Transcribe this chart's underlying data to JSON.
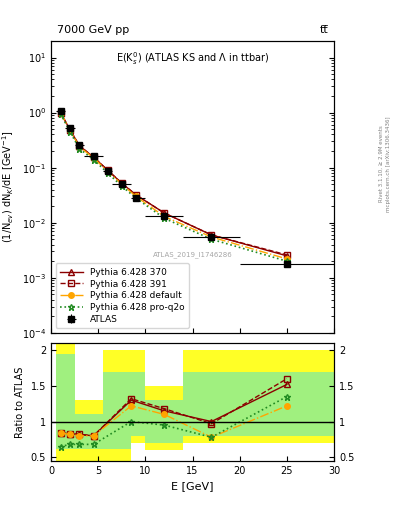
{
  "title_top": "7000 GeV pp",
  "title_right": "tt̅",
  "plot_title": "E(K$^0_s$) (ATLAS KS and Λ in ttbar)",
  "ylabel_main": "(1/N$_{ev}$) dN$_K$/dE [GeV$^{-1}$]",
  "ylabel_ratio": "Ratio to ATLAS",
  "xlabel": "E [GeV]",
  "atlas_id": "ATLAS_2019_I1746286",
  "rivet_label": "Rivet 3.1.10, ≥ 2.9M events",
  "mcplots_label": "mcplots.cern.ch [arXiv:1306.3436]",
  "x_centers": [
    1.0,
    2.0,
    3.0,
    4.5,
    6.0,
    7.5,
    9.0,
    12.0,
    17.0,
    25.0
  ],
  "x_edges": [
    0.5,
    1.5,
    2.5,
    3.5,
    5.5,
    6.5,
    8.5,
    10.0,
    14.0,
    20.0,
    30.0
  ],
  "atlas_y": [
    1.05,
    0.52,
    0.26,
    0.16,
    0.088,
    0.05,
    0.028,
    0.013,
    0.0055,
    0.0018
  ],
  "atlas_yerr": [
    0.05,
    0.03,
    0.015,
    0.01,
    0.006,
    0.004,
    0.003,
    0.001,
    0.0005,
    0.0002
  ],
  "py370_y": [
    1.0,
    0.49,
    0.25,
    0.155,
    0.09,
    0.052,
    0.032,
    0.015,
    0.006,
    0.0025
  ],
  "py391_y": [
    1.0,
    0.49,
    0.25,
    0.155,
    0.09,
    0.052,
    0.032,
    0.015,
    0.006,
    0.0026
  ],
  "pydef_y": [
    1.0,
    0.48,
    0.24,
    0.15,
    0.086,
    0.05,
    0.03,
    0.013,
    0.0055,
    0.0022
  ],
  "pyq2o_y": [
    0.95,
    0.45,
    0.22,
    0.14,
    0.08,
    0.046,
    0.028,
    0.012,
    0.005,
    0.002
  ],
  "band_yellow_edges": [
    0.5,
    1.5,
    2.5,
    3.5,
    5.5,
    8.5,
    10.0,
    14.0,
    20.0,
    30.0
  ],
  "band_yellow_lo": [
    0.45,
    0.45,
    0.45,
    0.45,
    0.45,
    0.7,
    0.6,
    0.7,
    0.7
  ],
  "band_yellow_hi": [
    2.1,
    2.1,
    1.3,
    1.3,
    2.0,
    2.0,
    1.5,
    2.0,
    2.0
  ],
  "band_green_edges": [
    0.5,
    1.5,
    2.5,
    3.5,
    5.5,
    8.5,
    10.0,
    14.0,
    20.0,
    30.0
  ],
  "band_green_lo": [
    0.62,
    0.62,
    0.62,
    0.62,
    0.62,
    0.8,
    0.7,
    0.8,
    0.8
  ],
  "band_green_hi": [
    1.95,
    1.95,
    1.1,
    1.1,
    1.7,
    1.7,
    1.3,
    1.7,
    1.7
  ],
  "ratio_rx": [
    1.0,
    2.0,
    3.0,
    4.5,
    8.5,
    12.0,
    17.0,
    25.0
  ],
  "ratio_py370": [
    0.84,
    0.83,
    0.82,
    0.8,
    1.3,
    1.15,
    1.0,
    1.52
  ],
  "ratio_py391": [
    0.84,
    0.83,
    0.82,
    0.8,
    1.32,
    1.18,
    0.97,
    1.6
  ],
  "ratio_pydef": [
    0.84,
    0.82,
    0.8,
    0.8,
    1.22,
    1.1,
    0.78,
    1.22
  ],
  "ratio_pyq2o": [
    0.65,
    0.68,
    0.68,
    0.68,
    1.0,
    0.95,
    0.78,
    1.35
  ],
  "color_py370": "#8B0000",
  "color_py391": "#8B0000",
  "color_pydef": "#FFA500",
  "color_pyq2o": "#228B22",
  "color_atlas": "#000000",
  "ylim_main": [
    0.0001,
    20
  ],
  "ylim_ratio": [
    0.45,
    2.1
  ],
  "xlim": [
    0,
    30
  ]
}
